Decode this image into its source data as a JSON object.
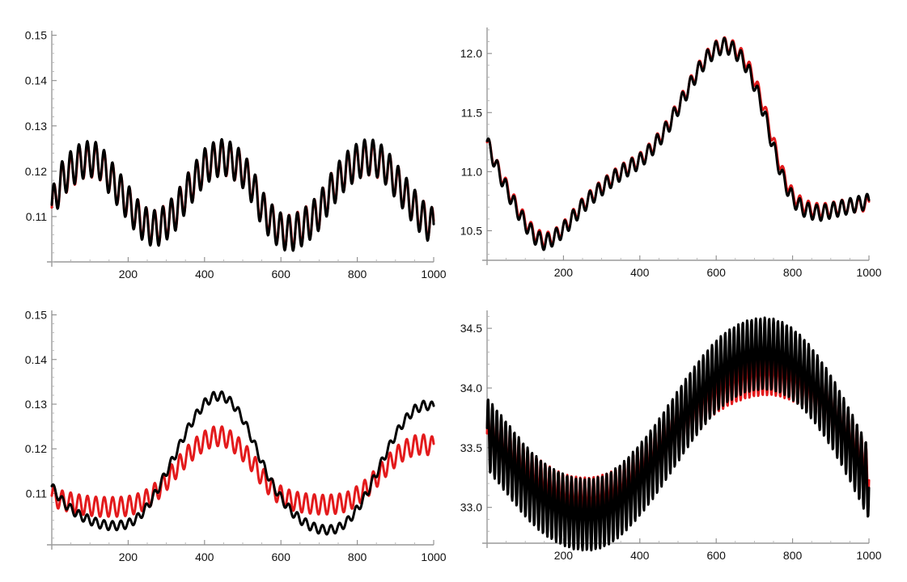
{
  "colors": {
    "series_a": "#e31a1c",
    "series_b": "#000000",
    "axis": "#9a9a9a"
  },
  "chart_data": [
    {
      "type": "line",
      "xlim": [
        0,
        1000
      ],
      "ylim": [
        0.1,
        0.151
      ],
      "x_ticks": [
        200,
        400,
        600,
        800,
        1000
      ],
      "y_ticks": [
        0.11,
        0.12,
        0.13,
        0.14,
        0.15
      ],
      "x_tick_labels": [
        "200",
        "400",
        "600",
        "800",
        "1000"
      ],
      "y_tick_labels": [
        "0.11",
        "0.12",
        "0.13",
        "0.14",
        "0.15"
      ],
      "grid": false,
      "series": [
        {
          "color": "#e31a1c",
          "x": [
            0,
            25,
            50,
            75,
            100,
            125,
            150,
            175,
            200,
            225,
            250,
            275,
            300,
            325,
            350,
            375,
            400,
            425,
            450,
            475,
            500,
            525,
            550,
            575,
            600,
            625,
            650,
            675,
            700,
            725,
            750,
            775,
            800,
            825,
            850,
            875,
            900,
            925,
            950,
            975,
            1000
          ],
          "y": [
            0.112,
            0.118,
            0.12,
            0.122,
            0.1225,
            0.122,
            0.119,
            0.116,
            0.113,
            0.11,
            0.108,
            0.1075,
            0.109,
            0.111,
            0.115,
            0.118,
            0.121,
            0.1225,
            0.123,
            0.122,
            0.1205,
            0.117,
            0.112,
            0.109,
            0.107,
            0.1065,
            0.1075,
            0.109,
            0.111,
            0.115,
            0.118,
            0.1205,
            0.122,
            0.123,
            0.1225,
            0.121,
            0.118,
            0.115,
            0.112,
            0.1095,
            0.108
          ]
        },
        {
          "color": "#000000",
          "x": [
            0,
            25,
            50,
            75,
            100,
            125,
            150,
            175,
            200,
            225,
            250,
            275,
            300,
            325,
            350,
            375,
            400,
            425,
            450,
            475,
            500,
            525,
            550,
            575,
            600,
            625,
            650,
            675,
            700,
            725,
            750,
            775,
            800,
            825,
            850,
            875,
            900,
            925,
            950,
            975,
            1000
          ],
          "y": [
            0.112,
            0.118,
            0.1205,
            0.1222,
            0.1228,
            0.1222,
            0.119,
            0.116,
            0.113,
            0.1098,
            0.1078,
            0.1073,
            0.1088,
            0.111,
            0.1148,
            0.118,
            0.121,
            0.1225,
            0.1232,
            0.1222,
            0.1203,
            0.1168,
            0.1118,
            0.1088,
            0.1068,
            0.1062,
            0.1072,
            0.1088,
            0.111,
            0.1148,
            0.118,
            0.1205,
            0.1222,
            0.1232,
            0.1228,
            0.121,
            0.118,
            0.115,
            0.112,
            0.1092,
            0.1078
          ]
        }
      ]
    },
    {
      "type": "line",
      "xlim": [
        0,
        1000
      ],
      "ylim": [
        10.25,
        12.22
      ],
      "x_ticks": [
        200,
        400,
        600,
        800,
        1000
      ],
      "y_ticks": [
        10.5,
        11.0,
        11.5,
        12.0
      ],
      "x_tick_labels": [
        "200",
        "400",
        "600",
        "800",
        "1000"
      ],
      "y_tick_labels": [
        "10.5",
        "11.0",
        "11.5",
        "12.0"
      ],
      "grid": false,
      "series": [
        {
          "color": "#e31a1c",
          "x": [
            0,
            25,
            50,
            75,
            100,
            125,
            150,
            175,
            200,
            225,
            250,
            275,
            300,
            325,
            350,
            375,
            400,
            425,
            450,
            475,
            500,
            525,
            550,
            575,
            600,
            625,
            650,
            675,
            700,
            725,
            750,
            775,
            800,
            825,
            850,
            875,
            900,
            925,
            950,
            975,
            1000
          ],
          "y": [
            11.25,
            11.05,
            10.88,
            10.72,
            10.58,
            10.47,
            10.42,
            10.45,
            10.52,
            10.62,
            10.72,
            10.8,
            10.87,
            10.94,
            11.0,
            11.05,
            11.1,
            11.18,
            11.28,
            11.4,
            11.55,
            11.7,
            11.85,
            11.97,
            12.05,
            12.08,
            12.04,
            11.95,
            11.78,
            11.55,
            11.25,
            10.98,
            10.8,
            10.72,
            10.68,
            10.67,
            10.68,
            10.7,
            10.71,
            10.72,
            10.73
          ]
        },
        {
          "color": "#000000",
          "x": [
            0,
            25,
            50,
            75,
            100,
            125,
            150,
            175,
            200,
            225,
            250,
            275,
            300,
            325,
            350,
            375,
            400,
            425,
            450,
            475,
            500,
            525,
            550,
            575,
            600,
            625,
            650,
            675,
            700,
            725,
            750,
            775,
            800,
            825,
            850,
            875,
            900,
            925,
            950,
            975,
            1000
          ],
          "y": [
            11.25,
            11.04,
            10.86,
            10.7,
            10.56,
            10.45,
            10.4,
            10.44,
            10.51,
            10.61,
            10.71,
            10.79,
            10.86,
            10.93,
            10.99,
            11.04,
            11.09,
            11.17,
            11.27,
            11.39,
            11.54,
            11.69,
            11.84,
            11.96,
            12.04,
            12.07,
            12.02,
            11.92,
            11.74,
            11.5,
            11.2,
            10.94,
            10.77,
            10.69,
            10.66,
            10.65,
            10.67,
            10.69,
            10.71,
            10.73,
            10.75
          ]
        }
      ]
    },
    {
      "type": "line",
      "xlim": [
        0,
        1000
      ],
      "ylim": [
        0.0985,
        0.151
      ],
      "x_ticks": [
        200,
        400,
        600,
        800,
        1000
      ],
      "y_ticks": [
        0.11,
        0.12,
        0.13,
        0.14,
        0.15
      ],
      "x_tick_labels": [
        "200",
        "400",
        "600",
        "800",
        "1000"
      ],
      "y_tick_labels": [
        "0.11",
        "0.12",
        "0.13",
        "0.14",
        "0.15"
      ],
      "grid": false,
      "series": [
        {
          "color": "#e31a1c",
          "x": [
            0,
            25,
            50,
            75,
            100,
            125,
            150,
            175,
            200,
            225,
            250,
            275,
            300,
            325,
            350,
            375,
            400,
            425,
            450,
            475,
            500,
            525,
            550,
            575,
            600,
            625,
            650,
            675,
            700,
            725,
            750,
            775,
            800,
            825,
            850,
            875,
            900,
            925,
            950,
            975,
            1000
          ],
          "y": [
            0.1095,
            0.1085,
            0.108,
            0.1075,
            0.1072,
            0.107,
            0.107,
            0.107,
            0.1072,
            0.1078,
            0.1088,
            0.1105,
            0.1128,
            0.1155,
            0.118,
            0.1202,
            0.1218,
            0.1228,
            0.1228,
            0.1215,
            0.1195,
            0.117,
            0.1138,
            0.1112,
            0.1095,
            0.1085,
            0.108,
            0.1077,
            0.1075,
            0.1075,
            0.1077,
            0.1082,
            0.1095,
            0.1112,
            0.1135,
            0.116,
            0.1182,
            0.1198,
            0.1208,
            0.121,
            0.1205
          ]
        },
        {
          "color": "#000000",
          "x": [
            0,
            25,
            50,
            75,
            100,
            125,
            150,
            175,
            200,
            225,
            250,
            275,
            300,
            325,
            350,
            375,
            400,
            425,
            450,
            475,
            500,
            525,
            550,
            575,
            600,
            625,
            650,
            675,
            700,
            725,
            750,
            775,
            800,
            825,
            850,
            875,
            900,
            925,
            950,
            975,
            1000
          ],
          "y": [
            0.1115,
            0.1085,
            0.1065,
            0.105,
            0.104,
            0.1032,
            0.1028,
            0.1028,
            0.1032,
            0.1045,
            0.107,
            0.1105,
            0.1148,
            0.119,
            0.1235,
            0.1272,
            0.1302,
            0.1318,
            0.1318,
            0.13,
            0.1268,
            0.1222,
            0.117,
            0.1125,
            0.109,
            0.1062,
            0.1042,
            0.1028,
            0.102,
            0.1018,
            0.1022,
            0.1038,
            0.1065,
            0.11,
            0.1145,
            0.119,
            0.1232,
            0.1265,
            0.1288,
            0.1298,
            0.1295
          ]
        }
      ]
    },
    {
      "type": "line",
      "xlim": [
        0,
        1000
      ],
      "ylim": [
        32.7,
        34.65
      ],
      "x_ticks": [
        200,
        400,
        600,
        800,
        1000
      ],
      "y_ticks": [
        33.0,
        33.5,
        34.0,
        34.5
      ],
      "x_tick_labels": [
        "200",
        "400",
        "600",
        "800",
        "1000"
      ],
      "y_tick_labels": [
        "33.0",
        "33.5",
        "34.0",
        "34.5"
      ],
      "grid": false,
      "series": [
        {
          "color": "#e31a1c",
          "x": [
            0,
            25,
            50,
            75,
            100,
            125,
            150,
            175,
            200,
            225,
            250,
            275,
            300,
            325,
            350,
            375,
            400,
            425,
            450,
            475,
            500,
            525,
            550,
            575,
            600,
            625,
            650,
            675,
            700,
            725,
            750,
            775,
            800,
            825,
            850,
            875,
            900,
            925,
            950,
            975,
            1000
          ],
          "y": [
            33.62,
            33.55,
            33.47,
            33.38,
            33.3,
            33.23,
            33.17,
            33.12,
            33.08,
            33.06,
            33.05,
            33.05,
            33.07,
            33.1,
            33.15,
            33.22,
            33.3,
            33.39,
            33.49,
            33.59,
            33.69,
            33.78,
            33.86,
            33.93,
            33.99,
            34.04,
            34.08,
            34.11,
            34.13,
            34.14,
            34.14,
            34.12,
            34.09,
            34.05,
            33.99,
            33.91,
            33.81,
            33.7,
            33.57,
            33.43,
            33.28
          ]
        },
        {
          "color": "#000000",
          "x": [
            0,
            25,
            50,
            75,
            100,
            125,
            150,
            175,
            200,
            225,
            250,
            275,
            300,
            325,
            350,
            375,
            400,
            425,
            450,
            475,
            500,
            525,
            550,
            575,
            600,
            625,
            650,
            675,
            700,
            725,
            750,
            775,
            800,
            825,
            850,
            875,
            900,
            925,
            950,
            975,
            1000
          ],
          "y": [
            33.62,
            33.52,
            33.42,
            33.32,
            33.22,
            33.14,
            33.07,
            33.02,
            32.98,
            32.95,
            32.94,
            32.94,
            32.96,
            33.0,
            33.06,
            33.14,
            33.23,
            33.33,
            33.44,
            33.56,
            33.68,
            33.8,
            33.91,
            34.01,
            34.1,
            34.17,
            34.22,
            34.26,
            34.28,
            34.29,
            34.28,
            34.25,
            34.2,
            34.13,
            34.04,
            33.93,
            33.81,
            33.67,
            33.52,
            33.36,
            33.2
          ]
        }
      ]
    }
  ]
}
